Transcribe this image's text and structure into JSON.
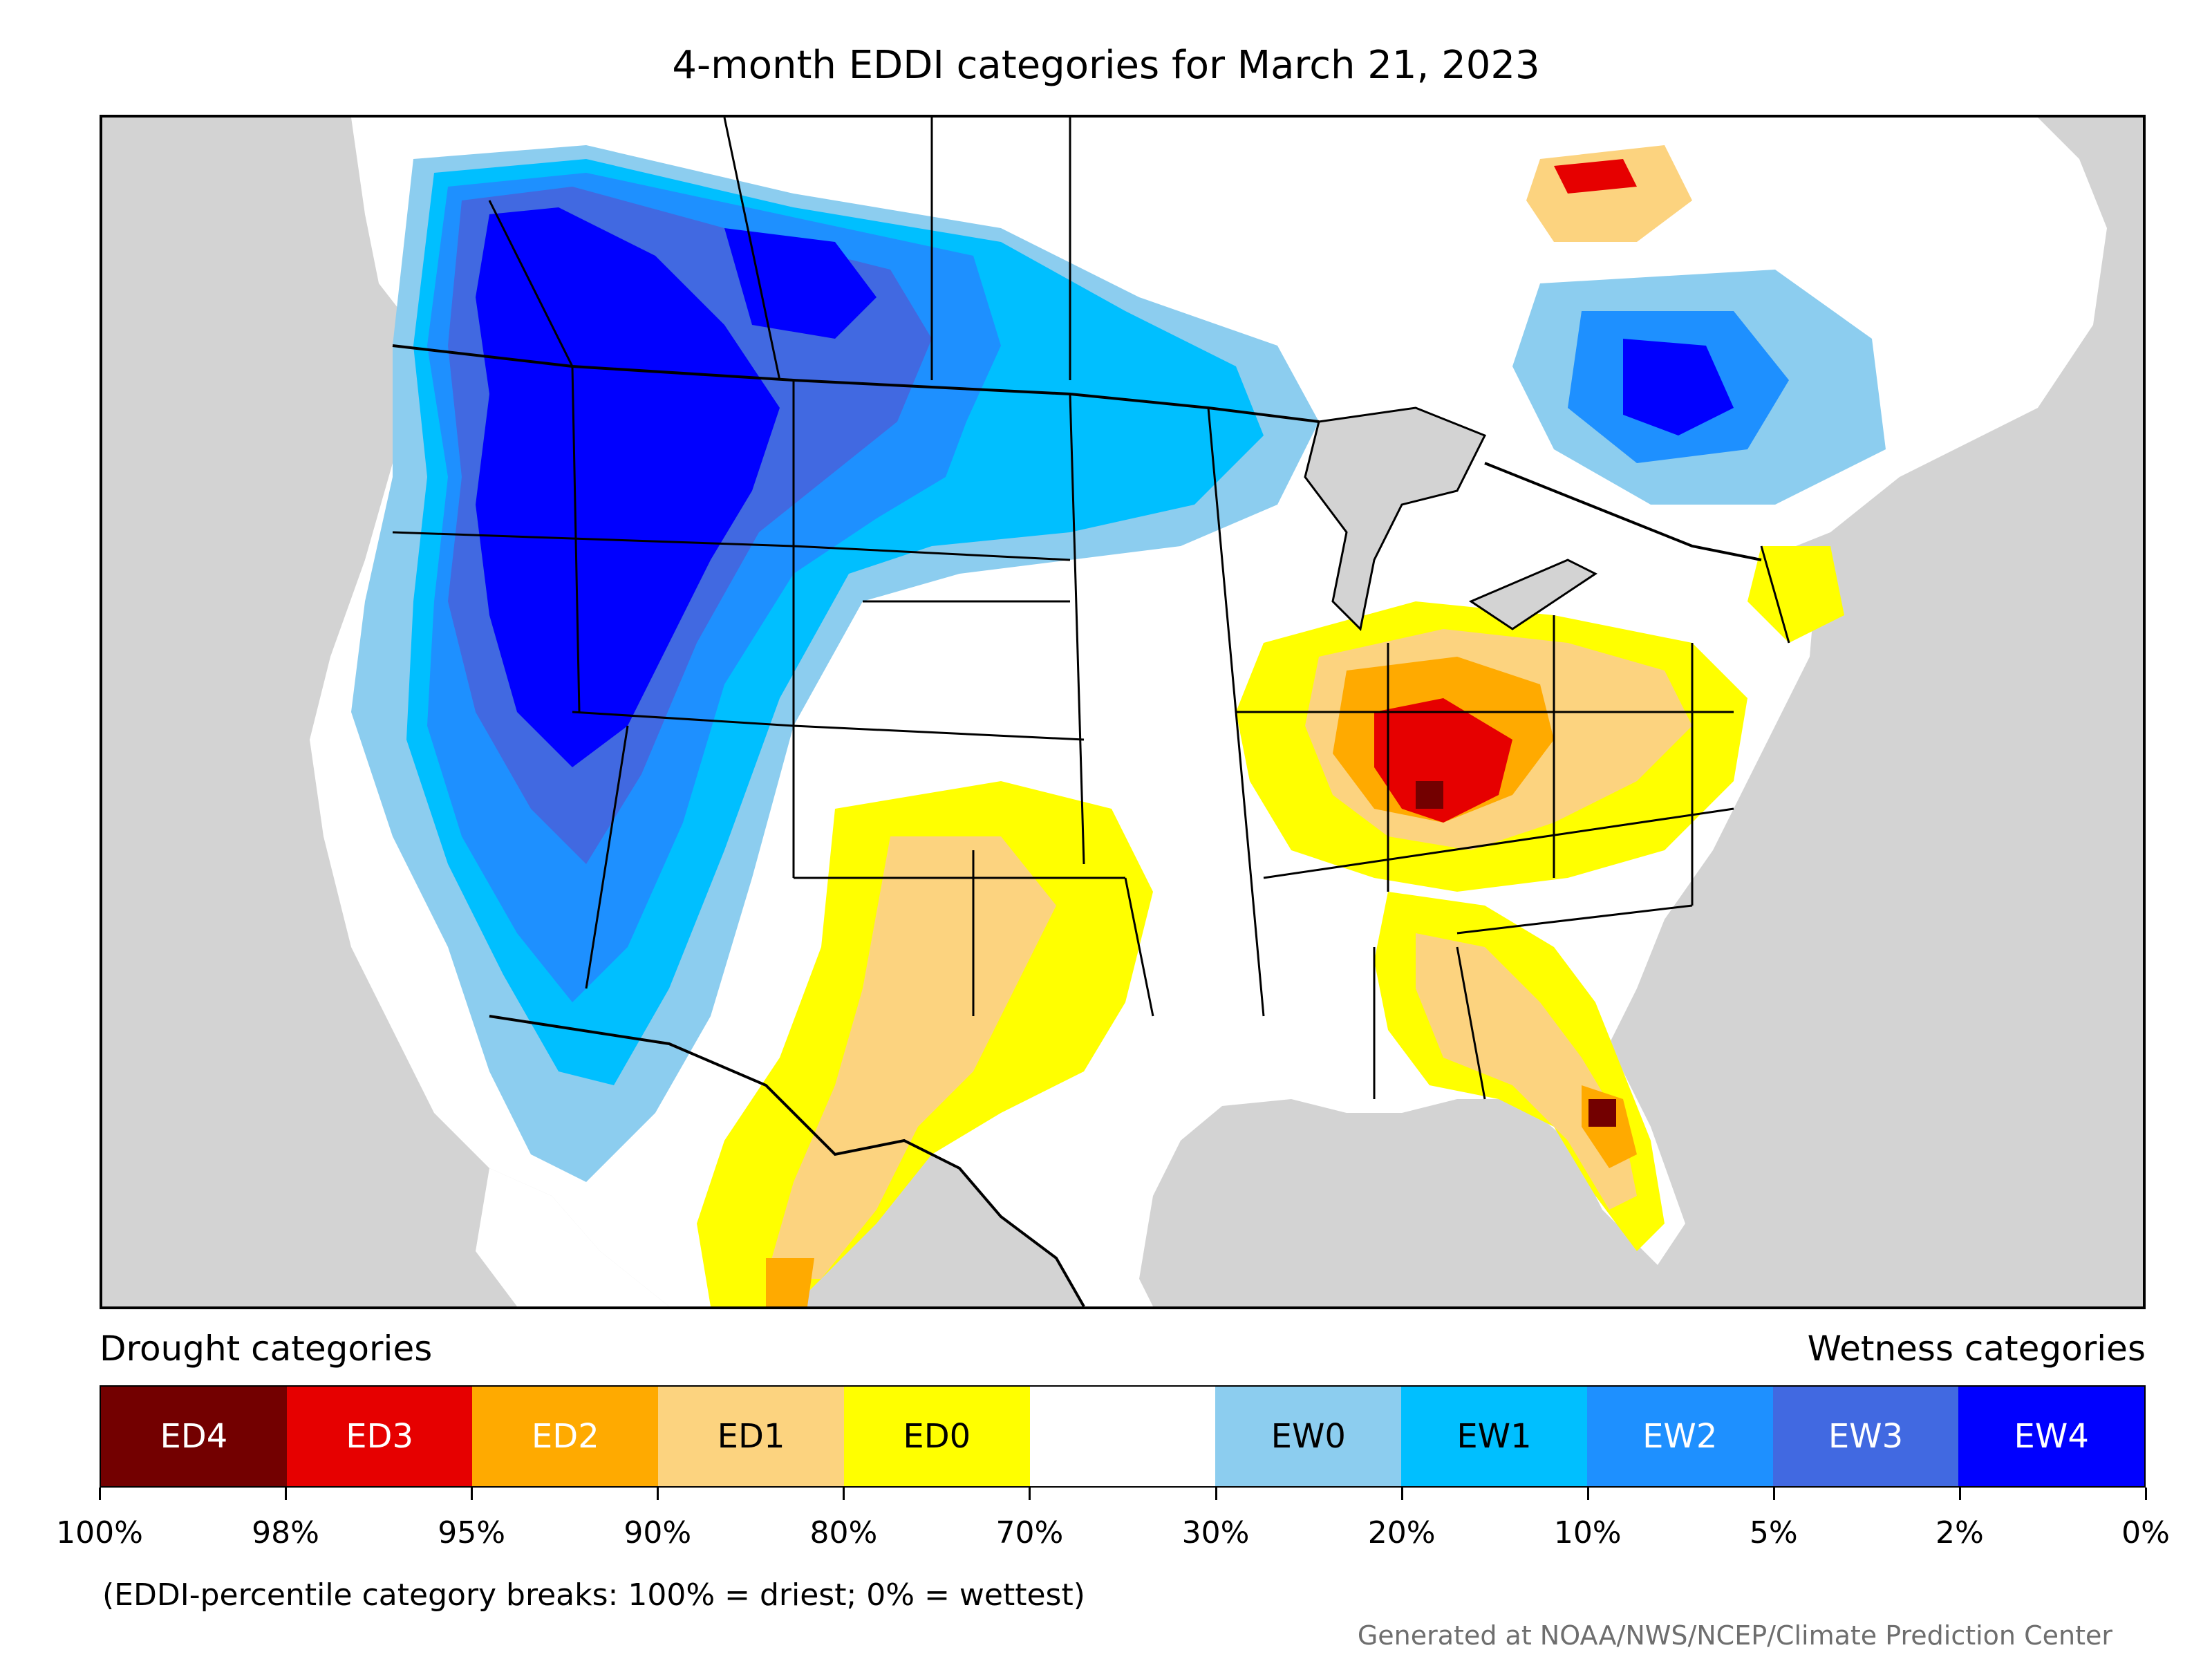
{
  "title": "4-month EDDI categories for March 21, 2023",
  "legend": {
    "drought_heading": "Drought categories",
    "wetness_heading": "Wetness categories",
    "categories": [
      {
        "label": "ED4",
        "color": "#730000",
        "text_color": "#ffffff"
      },
      {
        "label": "ED3",
        "color": "#e60000",
        "text_color": "#ffffff"
      },
      {
        "label": "ED2",
        "color": "#ffaa00",
        "text_color": "#ffffff"
      },
      {
        "label": "ED1",
        "color": "#fcd37f",
        "text_color": "#000000"
      },
      {
        "label": "ED0",
        "color": "#ffff00",
        "text_color": "#000000"
      },
      {
        "label": "",
        "color": "#ffffff",
        "text_color": "#000000"
      },
      {
        "label": "EW0",
        "color": "#8ccdef",
        "text_color": "#000000"
      },
      {
        "label": "EW1",
        "color": "#00bfff",
        "text_color": "#000000"
      },
      {
        "label": "EW2",
        "color": "#1e90ff",
        "text_color": "#ffffff"
      },
      {
        "label": "EW3",
        "color": "#4169e1",
        "text_color": "#ffffff"
      },
      {
        "label": "EW4",
        "color": "#0000ff",
        "text_color": "#ffffff"
      }
    ],
    "tick_labels": [
      "100%",
      "98%",
      "95%",
      "90%",
      "80%",
      "70%",
      "30%",
      "20%",
      "10%",
      "5%",
      "2%",
      "0%"
    ]
  },
  "note": "(EDDI-percentile category breaks: 100% = driest; 0% = wettest)",
  "credit": "Generated at NOAA/NWS/NCEP/Climate Prediction Center",
  "map_colors": {
    "background": "#d3d3d3",
    "land": "#ffffff",
    "border": "#000000"
  }
}
